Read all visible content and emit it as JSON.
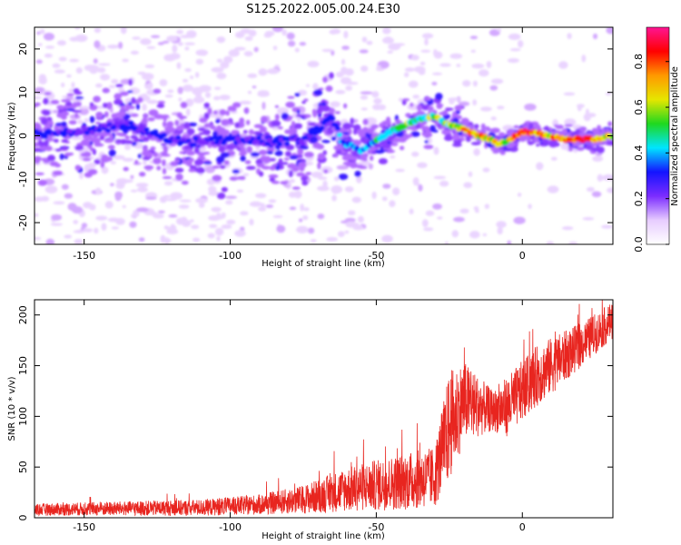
{
  "title": "S125.2022.005.00.24.E30",
  "chart_data": [
    {
      "type": "heatmap",
      "xlabel": "Height of straight line (km)",
      "ylabel": "Frequency (Hz)",
      "xlim": [
        -167,
        31
      ],
      "ylim": [
        -25,
        25
      ],
      "xticks": [
        -150,
        -100,
        -50,
        0
      ],
      "yticks": [
        -20,
        -10,
        0,
        10,
        20
      ],
      "colorbar": {
        "label": "Normalized spectral amplitude",
        "range": [
          0,
          0.95
        ],
        "ticks": [
          0.0,
          0.2,
          0.4,
          0.6,
          0.8
        ],
        "tick_labels": [
          "0.0",
          "0.2",
          "0.4",
          "0.6",
          "0.8"
        ],
        "colormap": [
          "#ffffff",
          "#e7ccff",
          "#7b2cff",
          "#1414ff",
          "#00e5ff",
          "#1fd81f",
          "#e6e600",
          "#ff9900",
          "#ff0000",
          "#ff1493"
        ]
      },
      "ridge": [
        {
          "x": -165,
          "y": 0.5,
          "amp": 0.3
        },
        {
          "x": -155,
          "y": 1.0,
          "amp": 0.3
        },
        {
          "x": -145,
          "y": 1.5,
          "amp": 0.3
        },
        {
          "x": -135,
          "y": 2.5,
          "amp": 0.3
        },
        {
          "x": -125,
          "y": 0.0,
          "amp": 0.3
        },
        {
          "x": -115,
          "y": -1.5,
          "amp": 0.3
        },
        {
          "x": -105,
          "y": -1.0,
          "amp": 0.3
        },
        {
          "x": -95,
          "y": -1.0,
          "amp": 0.3
        },
        {
          "x": -85,
          "y": -1.5,
          "amp": 0.3
        },
        {
          "x": -75,
          "y": -1.0,
          "amp": 0.3
        },
        {
          "x": -65,
          "y": 4.0,
          "amp": 0.35
        },
        {
          "x": -62,
          "y": -1.0,
          "amp": 0.35
        },
        {
          "x": -55,
          "y": -3.5,
          "amp": 0.4
        },
        {
          "x": -50,
          "y": -1.0,
          "amp": 0.45
        },
        {
          "x": -45,
          "y": 1.0,
          "amp": 0.5
        },
        {
          "x": -40,
          "y": 2.5,
          "amp": 0.55
        },
        {
          "x": -35,
          "y": 4.0,
          "amp": 0.55
        },
        {
          "x": -30,
          "y": 4.5,
          "amp": 0.6
        },
        {
          "x": -25,
          "y": 2.5,
          "amp": 0.6
        },
        {
          "x": -20,
          "y": 1.5,
          "amp": 0.7
        },
        {
          "x": -15,
          "y": 0.0,
          "amp": 0.75
        },
        {
          "x": -10,
          "y": -1.0,
          "amp": 0.7
        },
        {
          "x": -8,
          "y": -2.0,
          "amp": 0.65
        },
        {
          "x": -5,
          "y": -1.0,
          "amp": 0.7
        },
        {
          "x": 0,
          "y": 1.0,
          "amp": 0.9
        },
        {
          "x": 5,
          "y": 0.5,
          "amp": 0.8
        },
        {
          "x": 10,
          "y": 0.0,
          "amp": 0.75
        },
        {
          "x": 15,
          "y": -0.8,
          "amp": 0.85
        },
        {
          "x": 20,
          "y": -0.8,
          "amp": 0.9
        },
        {
          "x": 25,
          "y": -0.8,
          "amp": 0.8
        },
        {
          "x": 30,
          "y": 0.0,
          "amp": 0.6
        }
      ]
    },
    {
      "type": "line",
      "xlabel": "Height of straight line (km)",
      "ylabel": "SNR (10 * v/v)",
      "xlim": [
        -167,
        31
      ],
      "ylim": [
        0,
        215
      ],
      "xticks": [
        -150,
        -100,
        -50,
        0
      ],
      "yticks": [
        0,
        50,
        100,
        150,
        200
      ],
      "series": [
        {
          "color": "#e8251f",
          "envelope": [
            {
              "x": -167,
              "mean": 8,
              "spread": 6
            },
            {
              "x": -140,
              "mean": 9,
              "spread": 7
            },
            {
              "x": -110,
              "mean": 10,
              "spread": 8
            },
            {
              "x": -90,
              "mean": 13,
              "spread": 10
            },
            {
              "x": -75,
              "mean": 18,
              "spread": 14
            },
            {
              "x": -60,
              "mean": 28,
              "spread": 22
            },
            {
              "x": -50,
              "mean": 32,
              "spread": 25
            },
            {
              "x": -40,
              "mean": 36,
              "spread": 28
            },
            {
              "x": -30,
              "mean": 40,
              "spread": 30
            },
            {
              "x": -25,
              "mean": 90,
              "spread": 55
            },
            {
              "x": -20,
              "mean": 115,
              "spread": 40
            },
            {
              "x": -15,
              "mean": 110,
              "spread": 30
            },
            {
              "x": -10,
              "mean": 105,
              "spread": 20
            },
            {
              "x": -5,
              "mean": 110,
              "spread": 30
            },
            {
              "x": 0,
              "mean": 125,
              "spread": 30
            },
            {
              "x": 5,
              "mean": 140,
              "spread": 30
            },
            {
              "x": 10,
              "mean": 150,
              "spread": 28
            },
            {
              "x": 20,
              "mean": 170,
              "spread": 22
            },
            {
              "x": 31,
              "mean": 195,
              "spread": 18
            }
          ]
        }
      ]
    }
  ]
}
